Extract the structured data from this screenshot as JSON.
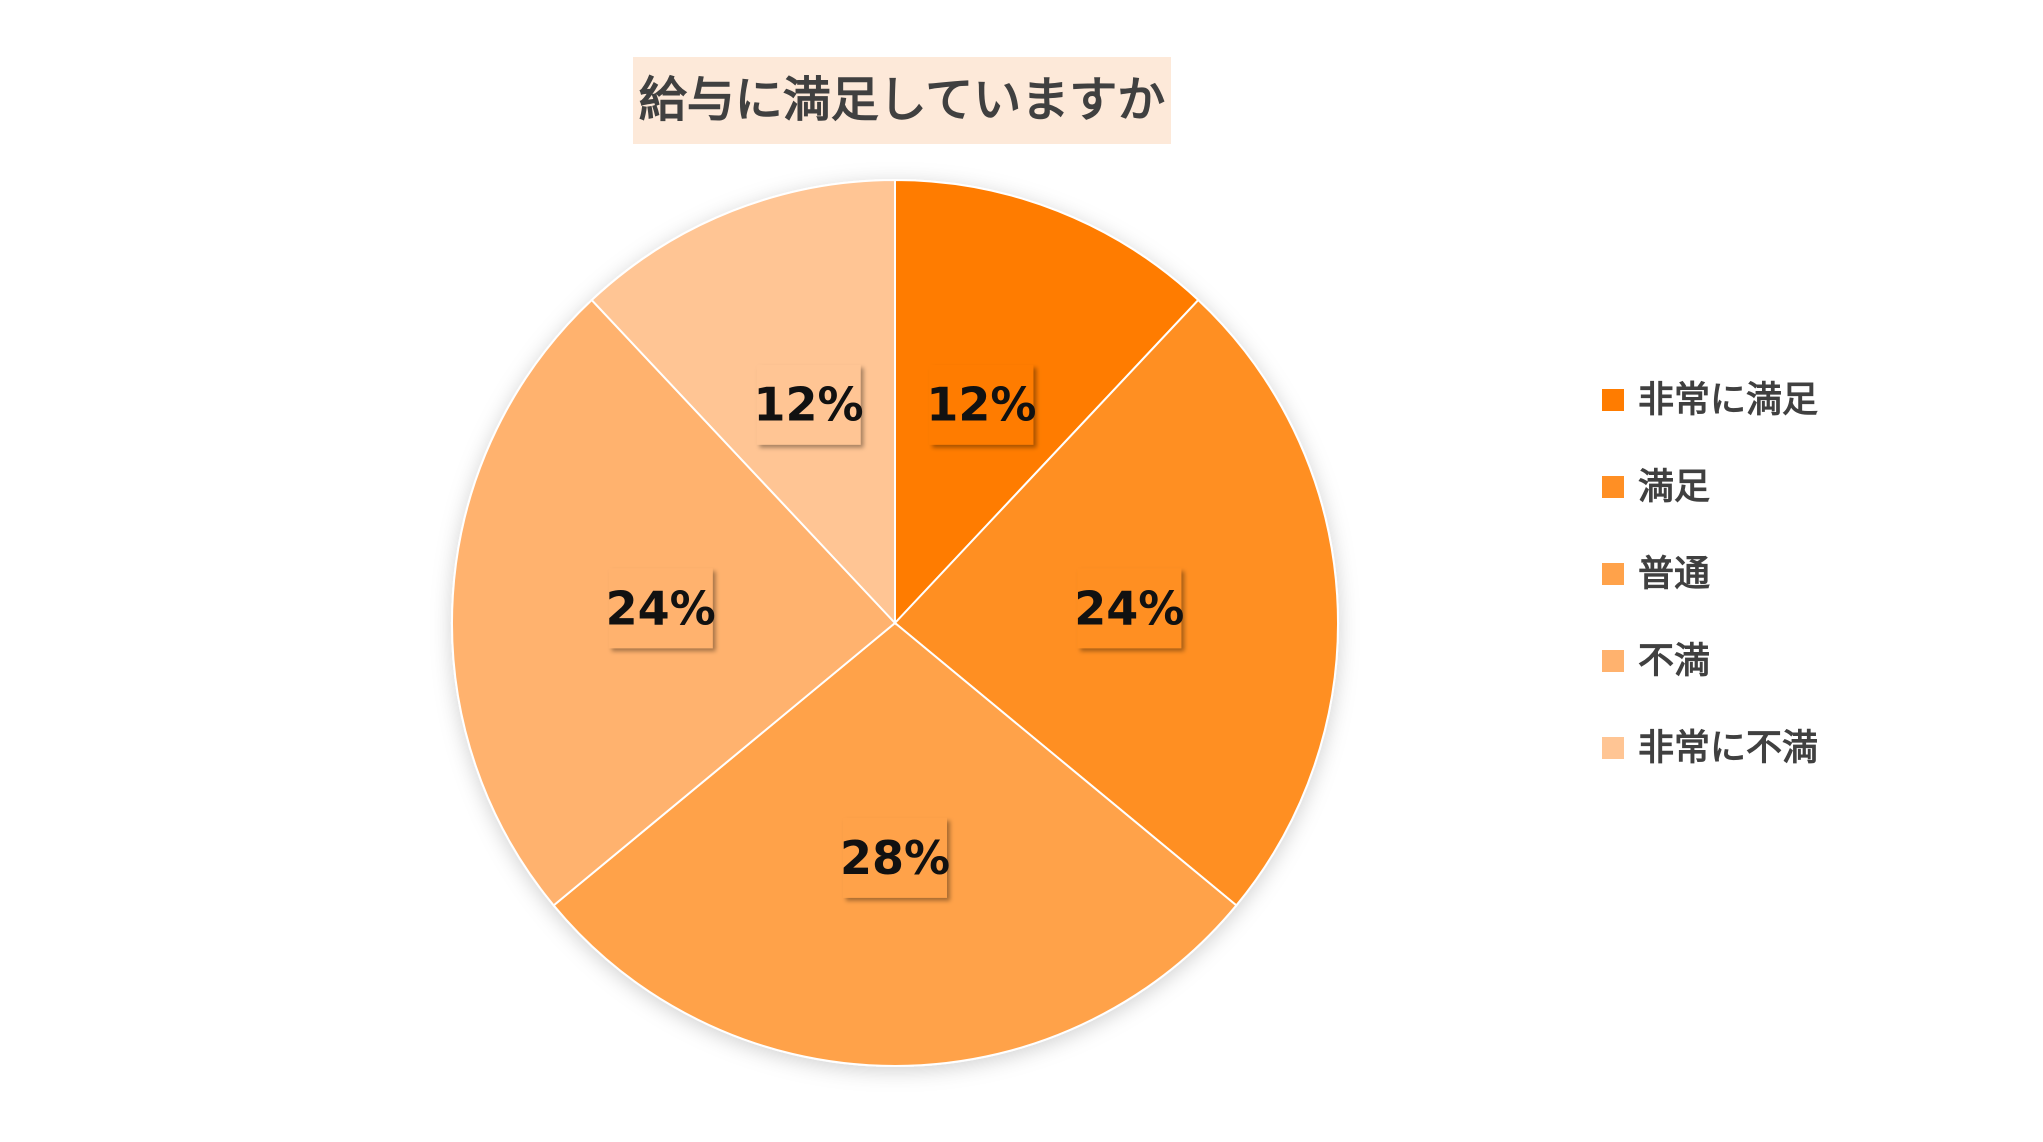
{
  "chart_data": {
    "type": "pie",
    "title": "給与に満足していますか",
    "categories": [
      "非常に満足",
      "満足",
      "普通",
      "不満",
      "非常に不満"
    ],
    "values": [
      12,
      24,
      28,
      24,
      12
    ],
    "value_labels": [
      "12%",
      "24%",
      "28%",
      "24%",
      "12%"
    ],
    "colors": [
      "#ff7c00",
      "#ff8f24",
      "#ffa24a",
      "#ffb26e",
      "#ffc594"
    ],
    "start_angle_deg": 0,
    "direction": "clockwise",
    "legend_position": "right"
  }
}
